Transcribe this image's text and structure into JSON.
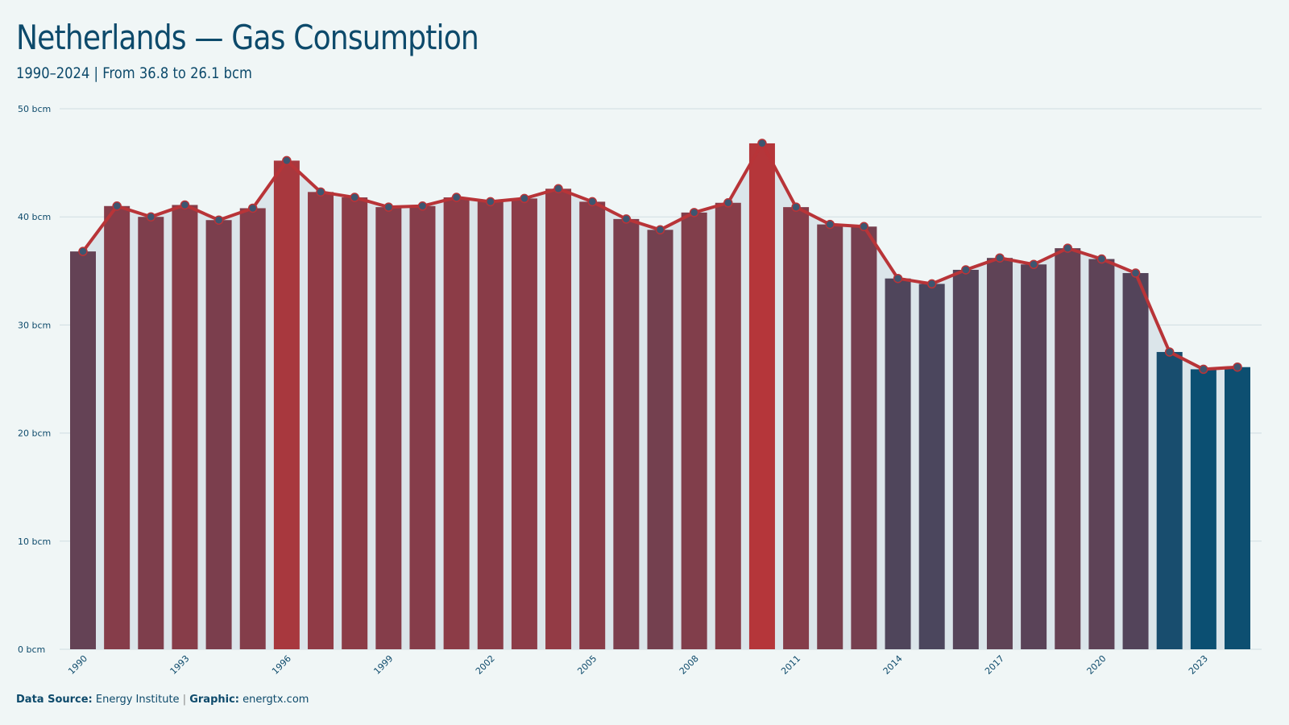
{
  "header": {
    "title": "Netherlands — Gas Consumption",
    "subtitle": "1990–2024 | From 36.8 to 26.1 bcm"
  },
  "footer": {
    "source_label": "Data Source:",
    "source_value": "Energy Institute",
    "separator": "|",
    "graphic_label": "Graphic:",
    "graphic_value": "energtx.com"
  },
  "colors": {
    "high": "#b5363a",
    "low": "#0b4f72",
    "line": "#b83438",
    "point": "#3d5670",
    "area": "#dbe5ea",
    "grid": "#d0dde2"
  },
  "chart_data": {
    "type": "bar",
    "title": "Netherlands — Gas Consumption",
    "subtitle": "1990–2024 | From 36.8 to 26.1 bcm",
    "xlabel": "",
    "ylabel": "",
    "unit": "bcm",
    "ylim": [
      0,
      50
    ],
    "yticks": [
      0,
      10,
      20,
      30,
      40,
      50
    ],
    "ytick_labels": [
      "0 bcm",
      "10 bcm",
      "20 bcm",
      "30 bcm",
      "40 bcm",
      "50 bcm"
    ],
    "xtick_labels": [
      "1990",
      "1993",
      "1996",
      "1999",
      "2002",
      "2005",
      "2008",
      "2011",
      "2014",
      "2017",
      "2020",
      "2023"
    ],
    "grid": true,
    "overlay": "line with markers",
    "categories": [
      1990,
      1991,
      1992,
      1993,
      1994,
      1995,
      1996,
      1997,
      1998,
      1999,
      2000,
      2001,
      2002,
      2003,
      2004,
      2005,
      2006,
      2007,
      2008,
      2009,
      2010,
      2011,
      2012,
      2013,
      2014,
      2015,
      2016,
      2017,
      2018,
      2019,
      2020,
      2021,
      2022,
      2023,
      2024
    ],
    "values": [
      36.8,
      41.0,
      40.0,
      41.1,
      39.7,
      40.8,
      45.2,
      42.3,
      41.8,
      40.9,
      41.0,
      41.8,
      41.4,
      41.7,
      42.6,
      41.4,
      39.8,
      38.8,
      40.4,
      41.3,
      46.8,
      40.9,
      39.3,
      39.1,
      34.3,
      33.8,
      35.1,
      36.2,
      35.6,
      37.1,
      36.1,
      34.8,
      27.5,
      25.9,
      26.1
    ]
  }
}
